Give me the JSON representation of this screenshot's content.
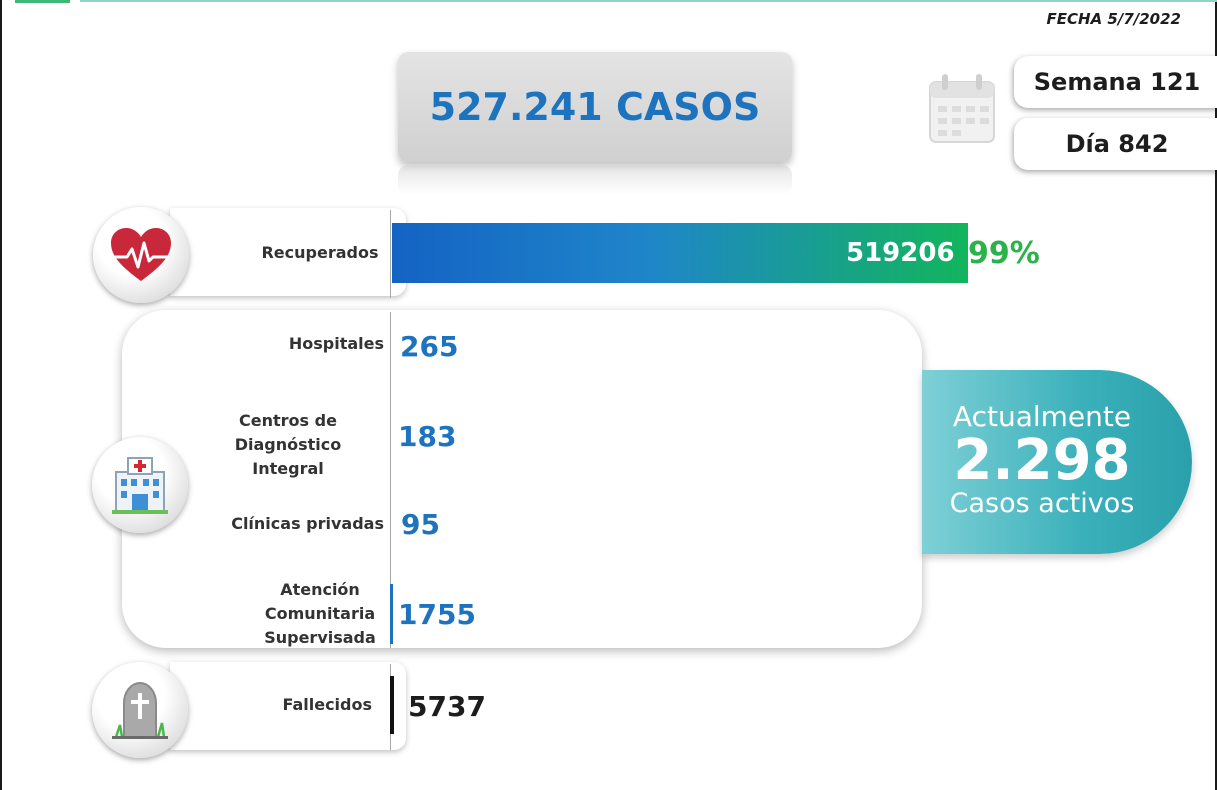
{
  "header": {
    "date": "FECHA 5/7/2022",
    "total_cases": "527.241 CASOS",
    "week": "Semana 121",
    "day": "Día 842"
  },
  "recovered": {
    "label": "Recuperados",
    "value": "519206",
    "percent": "99%",
    "fraction": 0.99
  },
  "care": {
    "hospitals": {
      "label": "Hospitales",
      "value": "265"
    },
    "cdi": {
      "label_line1": "Centros de",
      "label_line2": "Diagnóstico Integral",
      "value": "183"
    },
    "clinics": {
      "label": "Clínicas privadas",
      "value": "95"
    },
    "community": {
      "label_line1": "Atención",
      "label_line2": "Comunitaria",
      "label_line3": "Supervisada",
      "value": "1755"
    }
  },
  "deaths": {
    "label": "Fallecidos",
    "value": "5737"
  },
  "active": {
    "title": "Actualmente",
    "value": "2.298",
    "subtitle": "Casos activos"
  },
  "icons": [
    "calendar-icon",
    "heart-pulse-icon",
    "hospital-icon",
    "grave-icon"
  ],
  "colors": {
    "accent_blue": "#1e73be",
    "recovered_green": "#2cb24a",
    "active_teal": "#3ab0ba"
  }
}
